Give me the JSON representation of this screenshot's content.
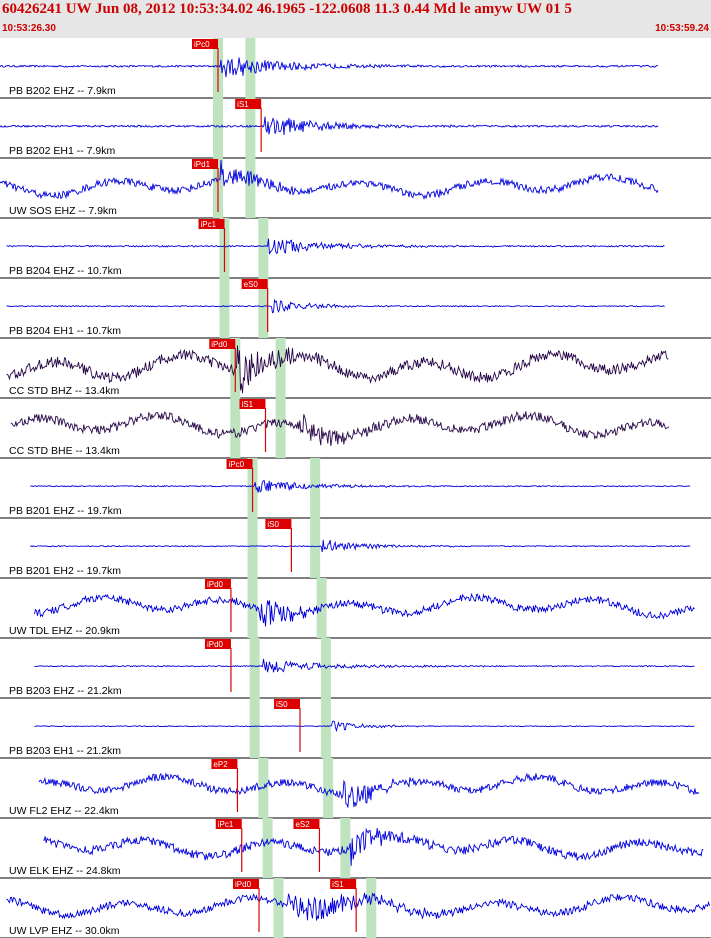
{
  "header": {
    "title": "60426241 UW Jun 08, 2012 10:53:34.02    46.1965 -122.0608 11.3 0.44 Md le amyw UW 01    5",
    "start_time": "10:53:26.30",
    "end_time": "10:53:59.24"
  },
  "colors": {
    "trace_blue": "#0000dd",
    "trace_purple": "#2a0a4a",
    "pick_red": "#dd0000",
    "pick_window": "#bfe3bf",
    "label_text": "#000000",
    "header_bg": "#e6e6e6"
  },
  "chart_data": {
    "type": "line",
    "title": "60426241 UW Jun 08, 2012 10:53:34.02    46.1965 -122.0608 11.3 0.44 Md le amyw UW 01    5",
    "x_range_seconds": [
      0,
      32.94
    ],
    "series": [
      {
        "name": "PB B202 EHZ -- 7.9km",
        "color": "trace",
        "start": 0.0,
        "end": 30.5,
        "amplitude": 0.35,
        "onset": 10.2,
        "burst": 3.0,
        "picks": [
          {
            "label": "iPc0",
            "time": 10.1
          }
        ],
        "window_marks": [
          10.1,
          11.6
        ]
      },
      {
        "name": "PB B202 EH1 -- 7.9km",
        "color": "trace",
        "start": 0.0,
        "end": 30.5,
        "amplitude": 0.35,
        "onset": 12.2,
        "burst": 2.5,
        "picks": [
          {
            "label": "iS1",
            "time": 12.1
          }
        ],
        "window_marks": [
          10.1,
          11.6
        ]
      },
      {
        "name": "UW SOS EHZ -- 7.9km",
        "color": "trace",
        "start": 0.0,
        "end": 30.5,
        "amplitude": 0.45,
        "onset": 10.2,
        "burst": 1.6,
        "picks": [
          {
            "label": "iPd1",
            "time": 10.1
          }
        ],
        "window_marks": [
          10.1,
          11.6
        ]
      },
      {
        "name": "PB B204 EHZ -- 10.7km",
        "color": "trace",
        "start": 0.3,
        "end": 30.8,
        "amplitude": 0.25,
        "onset": 12.4,
        "burst": 2.8,
        "picks": [
          {
            "label": "iPc1",
            "time": 10.4
          }
        ],
        "window_marks": [
          10.4,
          12.2
        ]
      },
      {
        "name": "PB B204 EH1 -- 10.7km",
        "color": "trace",
        "start": 0.3,
        "end": 30.8,
        "amplitude": 0.2,
        "onset": 12.6,
        "burst": 1.8,
        "picks": [
          {
            "label": "eS0",
            "time": 12.4
          }
        ],
        "window_marks": [
          10.4,
          12.2
        ]
      },
      {
        "name": "CC STD BHZ -- 13.4km",
        "color": "purple",
        "start": 0.3,
        "end": 31.0,
        "amplitude": 0.65,
        "onset": 11.0,
        "burst": 1.4,
        "picks": [
          {
            "label": "iPd0",
            "time": 10.9
          }
        ],
        "window_marks": [
          10.9,
          13.0
        ]
      },
      {
        "name": "CC STD BHE -- 13.4km",
        "color": "purple",
        "start": 0.5,
        "end": 31.0,
        "amplitude": 0.55,
        "onset": 13.5,
        "burst": 1.6,
        "picks": [
          {
            "label": "iS1",
            "time": 12.3
          }
        ],
        "window_marks": [
          10.9,
          13.0
        ]
      },
      {
        "name": "PB B201 EHZ -- 19.7km",
        "color": "trace",
        "start": 1.4,
        "end": 32.0,
        "amplitude": 0.2,
        "onset": 11.8,
        "burst": 2.5,
        "picks": [
          {
            "label": "iPc0",
            "time": 11.7
          }
        ],
        "window_marks": [
          11.7,
          14.6
        ]
      },
      {
        "name": "PB B201 EH2 -- 19.7km",
        "color": "trace",
        "start": 1.4,
        "end": 32.0,
        "amplitude": 0.2,
        "onset": 14.9,
        "burst": 2.0,
        "picks": [
          {
            "label": "iS0",
            "time": 13.5
          }
        ],
        "window_marks": [
          11.7,
          14.6
        ]
      },
      {
        "name": "UW TDL EHZ -- 20.9km",
        "color": "trace",
        "start": 1.6,
        "end": 32.2,
        "amplitude": 0.45,
        "onset": 12.0,
        "burst": 1.6,
        "picks": [
          {
            "label": "iPd0",
            "time": 10.7
          }
        ],
        "window_marks": [
          11.7,
          14.9
        ]
      },
      {
        "name": "PB B203 EHZ -- 21.2km",
        "color": "trace",
        "start": 1.6,
        "end": 32.2,
        "amplitude": 0.2,
        "onset": 12.2,
        "burst": 3.0,
        "picks": [
          {
            "label": "iPd0",
            "time": 10.7
          }
        ],
        "window_marks": [
          11.8,
          15.1
        ]
      },
      {
        "name": "PB B203 EH1 -- 21.2km",
        "color": "trace",
        "start": 1.6,
        "end": 32.2,
        "amplitude": 0.15,
        "onset": 15.4,
        "burst": 1.5,
        "picks": [
          {
            "label": "iS0",
            "time": 13.9
          }
        ],
        "window_marks": [
          11.8,
          15.1
        ]
      },
      {
        "name": "UW FL2 EHZ -- 22.4km",
        "color": "trace",
        "start": 1.8,
        "end": 32.4,
        "amplitude": 0.45,
        "onset": 15.8,
        "burst": 1.6,
        "picks": [
          {
            "label": "eP2",
            "time": 11.0
          }
        ],
        "window_marks": [
          12.2,
          15.2
        ]
      },
      {
        "name": "UW ELK EHZ -- 24.8km",
        "color": "trace",
        "start": 2.0,
        "end": 32.6,
        "amplitude": 0.5,
        "onset": 16.2,
        "burst": 1.6,
        "picks": [
          {
            "label": "iPc1",
            "time": 11.2
          },
          {
            "label": "eS2",
            "time": 14.8
          }
        ],
        "window_marks": [
          12.4,
          16.0
        ]
      },
      {
        "name": "UW LVP EHZ -- 30.0km",
        "color": "trace",
        "start": 0.3,
        "end": 32.9,
        "amplitude": 0.45,
        "onset": 13.3,
        "burst": 3.5,
        "picks": [
          {
            "label": "iPd0",
            "time": 12.0
          },
          {
            "label": "iS1",
            "time": 16.5
          }
        ],
        "window_marks": [
          12.9,
          17.2
        ]
      }
    ]
  }
}
